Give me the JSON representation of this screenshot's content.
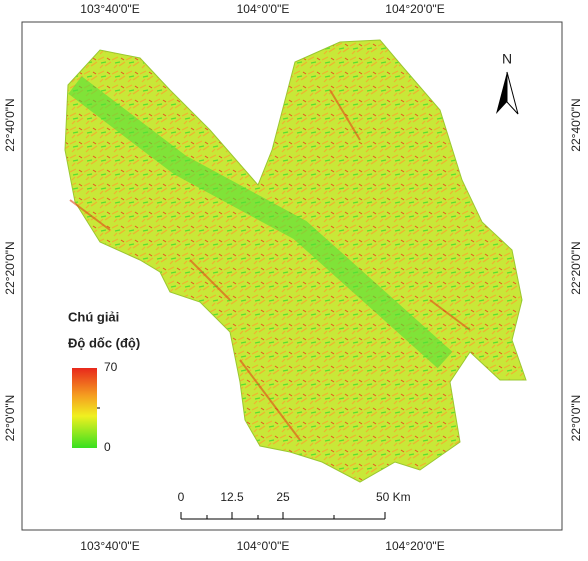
{
  "map": {
    "top_labels": [
      "103°40'0\"E",
      "104°0'0\"E",
      "104°20'0\"E"
    ],
    "bottom_labels": [
      "103°40'0\"E",
      "104°0'0\"E",
      "104°20'0\"E"
    ],
    "left_labels": [
      "22°40'0\"N",
      "22°20'0\"N",
      "22°0'0\"N"
    ],
    "right_labels": [
      "22°40'0\"N",
      "22°20'0\"N",
      "22°0'0\"N"
    ],
    "north": "N",
    "legend": {
      "title": "Chú giải",
      "subtitle": "Độ dốc (độ)",
      "max": "70",
      "min": "0"
    },
    "scale_bar": {
      "labels": [
        "0",
        "12.5",
        "25",
        "50 Km"
      ]
    }
  }
}
